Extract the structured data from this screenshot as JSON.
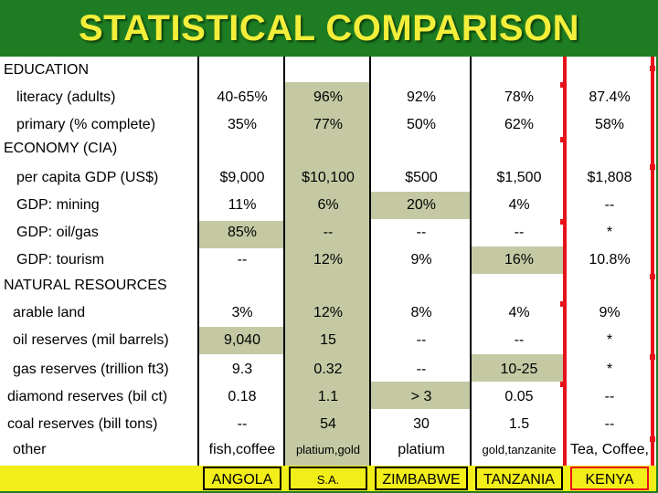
{
  "title": "STATISTICAL COMPARISON",
  "sections": {
    "education": "EDUCATION",
    "economy": "ECONOMY (CIA)",
    "resources": "NATURAL RESOURCES"
  },
  "row_labels": {
    "literacy": "literacy (adults)",
    "primary": "primary (% complete)",
    "gdp_pc": "per capita GDP (US$)",
    "mining": "GDP: mining",
    "oilgas": "GDP: oil/gas",
    "tourism": "GDP: tourism",
    "arable": "arable land",
    "oil_res": "oil reserves (mil barrels)",
    "gas_res": "gas reserves (trillion ft3)",
    "diamond": "diamond reserves (bil ct)",
    "coal": "coal reserves (bill tons)",
    "other": "other"
  },
  "countries": [
    "ANGOLA",
    "S.A.",
    "ZIMBABWE",
    "TANZANIA",
    "KENYA"
  ],
  "values": {
    "literacy": [
      "40-65%",
      "96%",
      "92%",
      "78%",
      "87.4%"
    ],
    "primary": [
      "35%",
      "77%",
      "50%",
      "62%",
      "58%"
    ],
    "gdp_pc": [
      "$9,000",
      "$10,100",
      "$500",
      "$1,500",
      "$1,808"
    ],
    "mining": [
      "11%",
      "6%",
      "20%",
      "4%",
      "--"
    ],
    "oilgas": [
      "85%",
      "--",
      "--",
      "--",
      "*"
    ],
    "tourism": [
      "--",
      "12%",
      "9%",
      "16%",
      "10.8%"
    ],
    "arable": [
      "3%",
      "12%",
      "8%",
      "4%",
      "9%"
    ],
    "oil_res": [
      "9,040",
      "15",
      "--",
      "--",
      "*"
    ],
    "gas_res": [
      "9.3",
      "0.32",
      "--",
      "10-25",
      "*"
    ],
    "diamond": [
      "0.18",
      "1.1",
      "> 3",
      "0.05",
      "--"
    ],
    "coal": [
      "--",
      "54",
      "30",
      "1.5",
      "--"
    ],
    "other": [
      "fish,coffee",
      "platium,gold",
      "platium",
      "gold,tanzanite",
      "Tea, Coffee,"
    ]
  },
  "colors": {
    "background": "#1e7d22",
    "title": "#f2ee3a",
    "highlight": "#c4c9a3",
    "footer": "#f2ee1a",
    "red_line": "#e8121b"
  }
}
